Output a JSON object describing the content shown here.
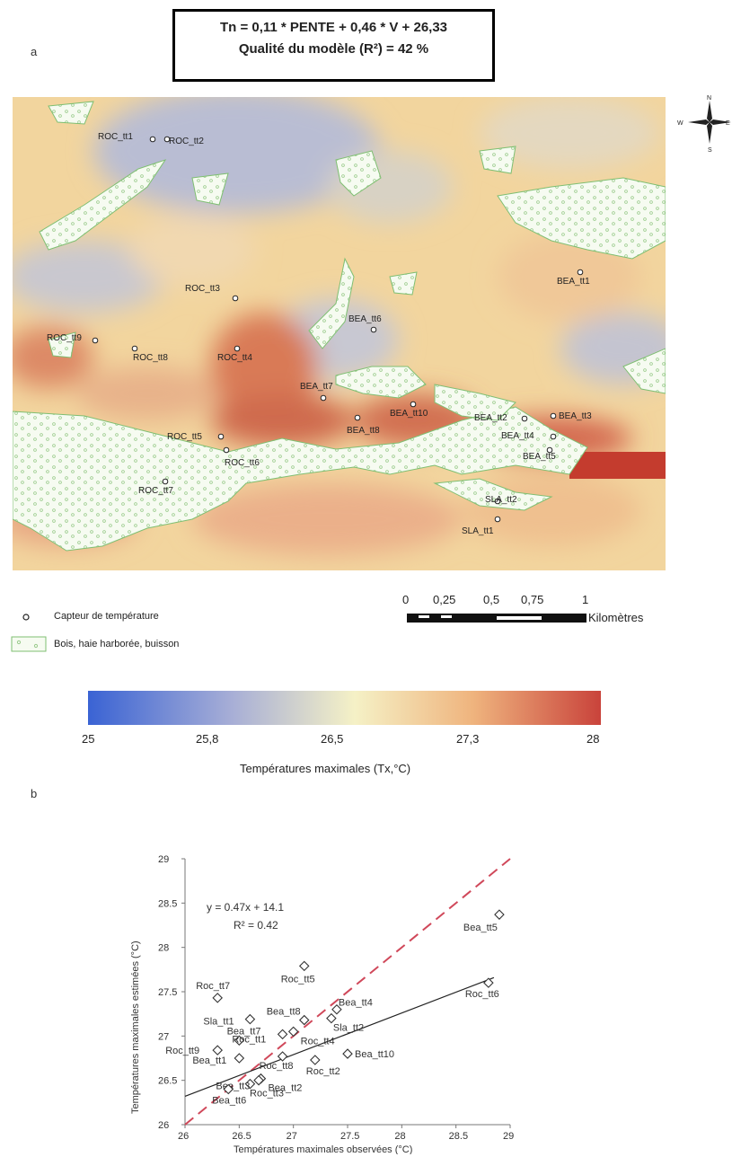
{
  "panel_a_label": "a",
  "panel_b_label": "b",
  "equation_box": {
    "line1": "Tn = 0,11 * PENTE + 0,46 * V + 26,33",
    "line2": "Qualité du modèle (R²) = 42 %"
  },
  "north_arrow": {
    "n": "N",
    "s": "S",
    "e": "E",
    "w": "W"
  },
  "sensors": [
    {
      "label": "ROC_tt1"
    },
    {
      "label": "ROC_tt2"
    },
    {
      "label": "ROC_tt3"
    },
    {
      "label": "ROC_tt4"
    },
    {
      "label": "ROC_tt5"
    },
    {
      "label": "ROC_tt6"
    },
    {
      "label": "ROC_tt7"
    },
    {
      "label": "ROC_tt8"
    },
    {
      "label": "ROC_tt9"
    },
    {
      "label": "BEA_tt1"
    },
    {
      "label": "BEA_tt2"
    },
    {
      "label": "BEA_tt3"
    },
    {
      "label": "BEA_tt4"
    },
    {
      "label": "BEA_tt5"
    },
    {
      "label": "BEA_tt6"
    },
    {
      "label": "BEA_tt7"
    },
    {
      "label": "BEA_tt8"
    },
    {
      "label": "BEA_tt10"
    },
    {
      "label": "SLA_tt1"
    },
    {
      "label": "SLA_tt2"
    }
  ],
  "legend": {
    "sensor": "Capteur de température",
    "woods": "Bois, haie harborée, buisson"
  },
  "scale_bar": {
    "ticks": [
      "0",
      "0,25",
      "0,5",
      "0,75",
      "1"
    ],
    "unit": "Kilomètres"
  },
  "colorbar": {
    "ticks": [
      "25",
      "25,8",
      "26,5",
      "27,3",
      "28"
    ],
    "title": "Températures maximales (Tx,°C)",
    "colors": [
      "#3a63d4",
      "#a7aed6",
      "#f5f1c6",
      "#efb47e",
      "#c9433b"
    ]
  },
  "chart_data": {
    "type": "scatter",
    "xlabel": "Températures maximales observées (°C)",
    "ylabel": "Températures maximales estimées (°C)",
    "xlim": [
      26,
      29
    ],
    "ylim": [
      26,
      29
    ],
    "xticks": [
      "26",
      "26.5",
      "27",
      "27.5",
      "28",
      "28.5",
      "29"
    ],
    "yticks": [
      "26",
      "26.5",
      "27",
      "27.5",
      "28",
      "28.5",
      "29"
    ],
    "trend_equation": "y = 0.47x + 14.1",
    "r_squared": "R² = 0.42",
    "trend_line": {
      "slope": 0.47,
      "intercept": 14.1
    },
    "identity_line_color": "#d0485a",
    "points": [
      {
        "label": "Roc_tt7",
        "x": 26.3,
        "y": 27.43
      },
      {
        "label": "Sla_tt1",
        "x": 26.6,
        "y": 27.19
      },
      {
        "label": "Bea_tt8",
        "x": 27.1,
        "y": 27.18
      },
      {
        "label": "Bea_tt4",
        "x": 27.4,
        "y": 27.3
      },
      {
        "label": "Sla_tt2",
        "x": 27.35,
        "y": 27.2
      },
      {
        "label": "Bea_tt7",
        "x": 26.9,
        "y": 27.02
      },
      {
        "label": "Roc_tt4",
        "x": 27.0,
        "y": 27.05
      },
      {
        "label": "Roc_tt1",
        "x": 26.5,
        "y": 26.95
      },
      {
        "label": "Roc_tt9",
        "x": 26.3,
        "y": 26.84
      },
      {
        "label": "Bea_tt1",
        "x": 26.5,
        "y": 26.75
      },
      {
        "label": "Roc_tt8",
        "x": 26.9,
        "y": 26.77
      },
      {
        "label": "Roc_tt2",
        "x": 27.2,
        "y": 26.73
      },
      {
        "label": "Bea_tt10",
        "x": 27.5,
        "y": 26.8
      },
      {
        "label": "Bea_tt3",
        "x": 26.6,
        "y": 26.46
      },
      {
        "label": "Bea_tt2",
        "x": 26.7,
        "y": 26.52
      },
      {
        "label": "Roc_tt3",
        "x": 26.68,
        "y": 26.5
      },
      {
        "label": "Bea_tt6",
        "x": 26.4,
        "y": 26.4
      },
      {
        "label": "Roc_tt5",
        "x": 27.1,
        "y": 27.79
      },
      {
        "label": "Bea_tt5",
        "x": 28.9,
        "y": 28.37
      },
      {
        "label": "Roc_tt6",
        "x": 28.8,
        "y": 27.6
      }
    ]
  }
}
